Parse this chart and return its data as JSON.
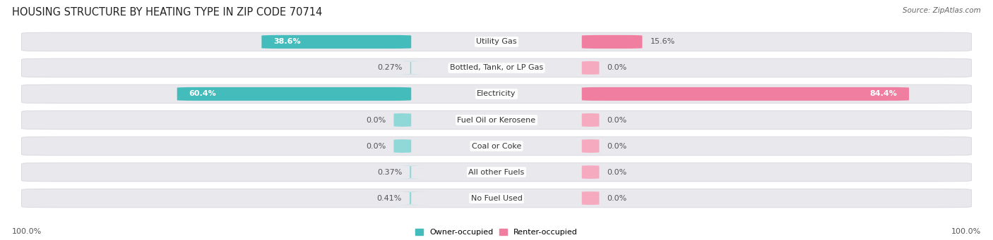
{
  "title": "HOUSING STRUCTURE BY HEATING TYPE IN ZIP CODE 70714",
  "source": "Source: ZipAtlas.com",
  "categories": [
    "Utility Gas",
    "Bottled, Tank, or LP Gas",
    "Electricity",
    "Fuel Oil or Kerosene",
    "Coal or Coke",
    "All other Fuels",
    "No Fuel Used"
  ],
  "owner_values": [
    38.6,
    0.27,
    60.4,
    0.0,
    0.0,
    0.37,
    0.41
  ],
  "renter_values": [
    15.6,
    0.0,
    84.4,
    0.0,
    0.0,
    0.0,
    0.0
  ],
  "owner_color": "#45BCBC",
  "renter_color": "#F07EA0",
  "owner_color_light": "#90D8D8",
  "renter_color_light": "#F5AABF",
  "pill_color": "#E8E8ED",
  "title_fontsize": 10.5,
  "label_fontsize": 8.0,
  "value_fontsize": 8.0,
  "axis_label_fontsize": 8.0,
  "source_fontsize": 7.5,
  "max_value": 100.0,
  "figure_width": 14.06,
  "figure_height": 3.41,
  "min_bar_stub": 0.018
}
